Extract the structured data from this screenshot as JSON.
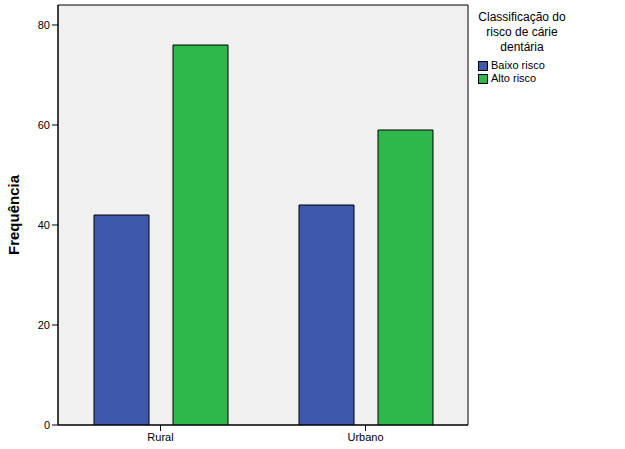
{
  "chart_data": {
    "type": "bar",
    "categories": [
      "Rural",
      "Urbano"
    ],
    "series": [
      {
        "name": "Baixo risco",
        "color": "#3e58ac",
        "values": [
          42,
          44
        ]
      },
      {
        "name": "Alto risco",
        "color": "#2eb84b",
        "values": [
          76,
          59
        ]
      }
    ],
    "y_label": "Frequência",
    "legend_title": "Classificação do risco de cárie dentária",
    "legend": "right",
    "ylim": [
      0,
      84
    ],
    "yticks": [
      0,
      20,
      40,
      60,
      80
    ],
    "grid": false
  }
}
